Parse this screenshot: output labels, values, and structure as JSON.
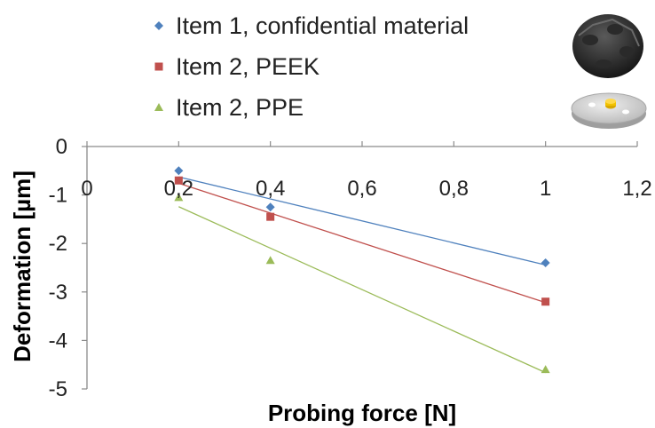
{
  "chart_data": {
    "type": "scatter",
    "title": "",
    "xlabel": "Probing force [N]",
    "ylabel": "Deformation [µm]",
    "xlim": [
      0,
      1.2
    ],
    "ylim": [
      -5,
      0
    ],
    "x_ticks": [
      0,
      0.2,
      0.4,
      0.6,
      0.8,
      1,
      1.2
    ],
    "x_tick_labels": [
      "0",
      "0,2",
      "0,4",
      "0,6",
      "0,8",
      "1",
      "1,2"
    ],
    "y_ticks": [
      0,
      -1,
      -2,
      -3,
      -4,
      -5
    ],
    "y_tick_labels": [
      "0",
      "-1",
      "-2",
      "-3",
      "-4",
      "-5"
    ],
    "grid": false,
    "legend_position": "top",
    "trendlines": true,
    "series": [
      {
        "name": "Item 1, confidential material",
        "marker": "diamond",
        "color": "#4f81bd",
        "x": [
          0.2,
          0.4,
          1
        ],
        "y": [
          -0.5,
          -1.25,
          -2.4
        ]
      },
      {
        "name": "Item 2, PEEK",
        "marker": "square",
        "color": "#c0504d",
        "x": [
          0.2,
          0.4,
          1
        ],
        "y": [
          -0.7,
          -1.45,
          -3.2
        ]
      },
      {
        "name": "Item 2, PPE",
        "marker": "triangle",
        "color": "#9bbb59",
        "x": [
          0.2,
          0.4,
          1
        ],
        "y": [
          -1.05,
          -2.35,
          -4.6
        ]
      }
    ]
  }
}
